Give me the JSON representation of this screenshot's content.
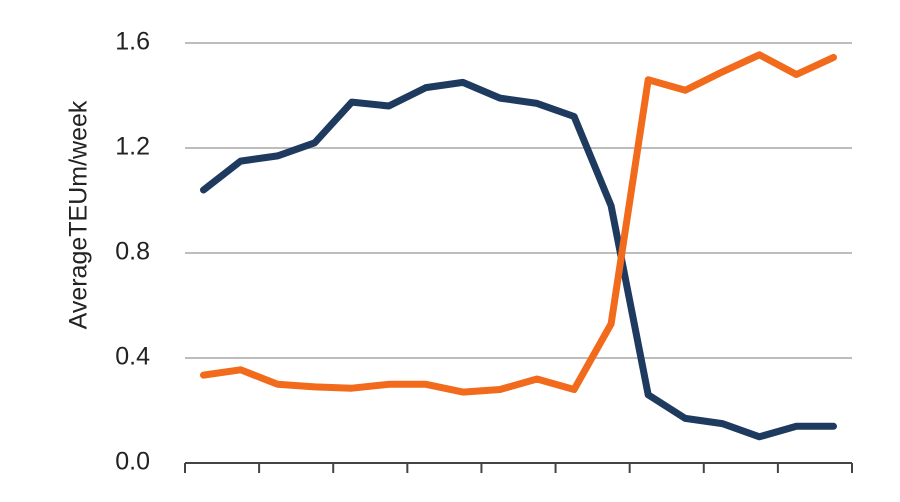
{
  "chart_data": {
    "type": "line",
    "y_label": "AverageTEUm/week",
    "categories": [
      null,
      null,
      null,
      null,
      null,
      null,
      null,
      null,
      null,
      null,
      null,
      null,
      null,
      null,
      null,
      null,
      null,
      null
    ],
    "series": [
      {
        "color": "#1f3a5f",
        "values": [
          1.04,
          1.15,
          1.17,
          1.22,
          1.375,
          1.36,
          1.43,
          1.45,
          1.39,
          1.37,
          1.32,
          0.98,
          0.26,
          0.17,
          0.15,
          0.1,
          0.14,
          0.14
        ]
      },
      {
        "color": "#f26a1b",
        "values": [
          0.335,
          0.355,
          0.3,
          0.29,
          0.285,
          0.3,
          0.3,
          0.27,
          0.28,
          0.32,
          0.28,
          0.53,
          1.46,
          1.42,
          1.49,
          1.555,
          1.48,
          1.545
        ]
      }
    ],
    "ylim": [
      0,
      1.6
    ],
    "yticks": [
      {
        "value": 0,
        "label": "0.0"
      },
      0.4,
      0.8,
      1.2,
      1.6
    ],
    "grid": true
  }
}
